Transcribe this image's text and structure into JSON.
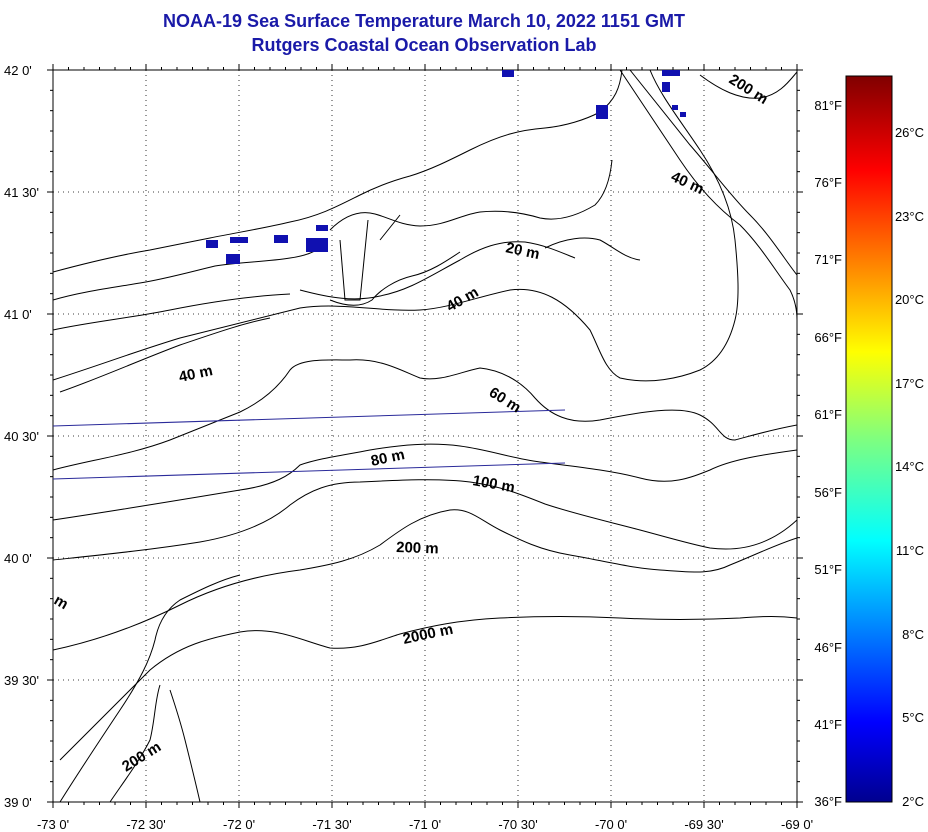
{
  "title": "NOAA-19 Sea Surface Temperature March 10, 2022 1151 GMT",
  "subtitle": "Rutgers Coastal Ocean Observation Lab",
  "lat_labels": [
    "42 0'",
    "41 30'",
    "41 0'",
    "40 30'",
    "40 0'",
    "39 30'",
    "39 0'"
  ],
  "lon_labels": [
    "-73 0'",
    "-72 30'",
    "-72 0'",
    "-71 30'",
    "-71 0'",
    "-70 30'",
    "-70 0'",
    "-69 30'",
    "-69 0'"
  ],
  "fahrenheit_labels": [
    "81°F",
    "76°F",
    "71°F",
    "66°F",
    "61°F",
    "56°F",
    "51°F",
    "46°F",
    "41°F",
    "36°F"
  ],
  "celsius_labels": [
    "26°C",
    "23°C",
    "20°C",
    "17°C",
    "14°C",
    "11°C",
    "8°C",
    "5°C",
    "2°C"
  ],
  "contour_labels": {
    "c200_ne": "200 m",
    "c40_ne": "40 m",
    "c20": "20 m",
    "c40_mid": "40 m",
    "c40_w": "40 m",
    "c60": "60 m",
    "c80": "80 m",
    "c100": "100 m",
    "c200_mid": "200 m",
    "c2000": "2000 m",
    "c200_sw": "200 m",
    "c_edge": "m"
  },
  "colors": {
    "title": "#1a1aa8",
    "sst_pixels": "#1010b0",
    "track_lines": "#2a2a9a"
  },
  "colorbar_range_c": [
    2,
    28
  ]
}
